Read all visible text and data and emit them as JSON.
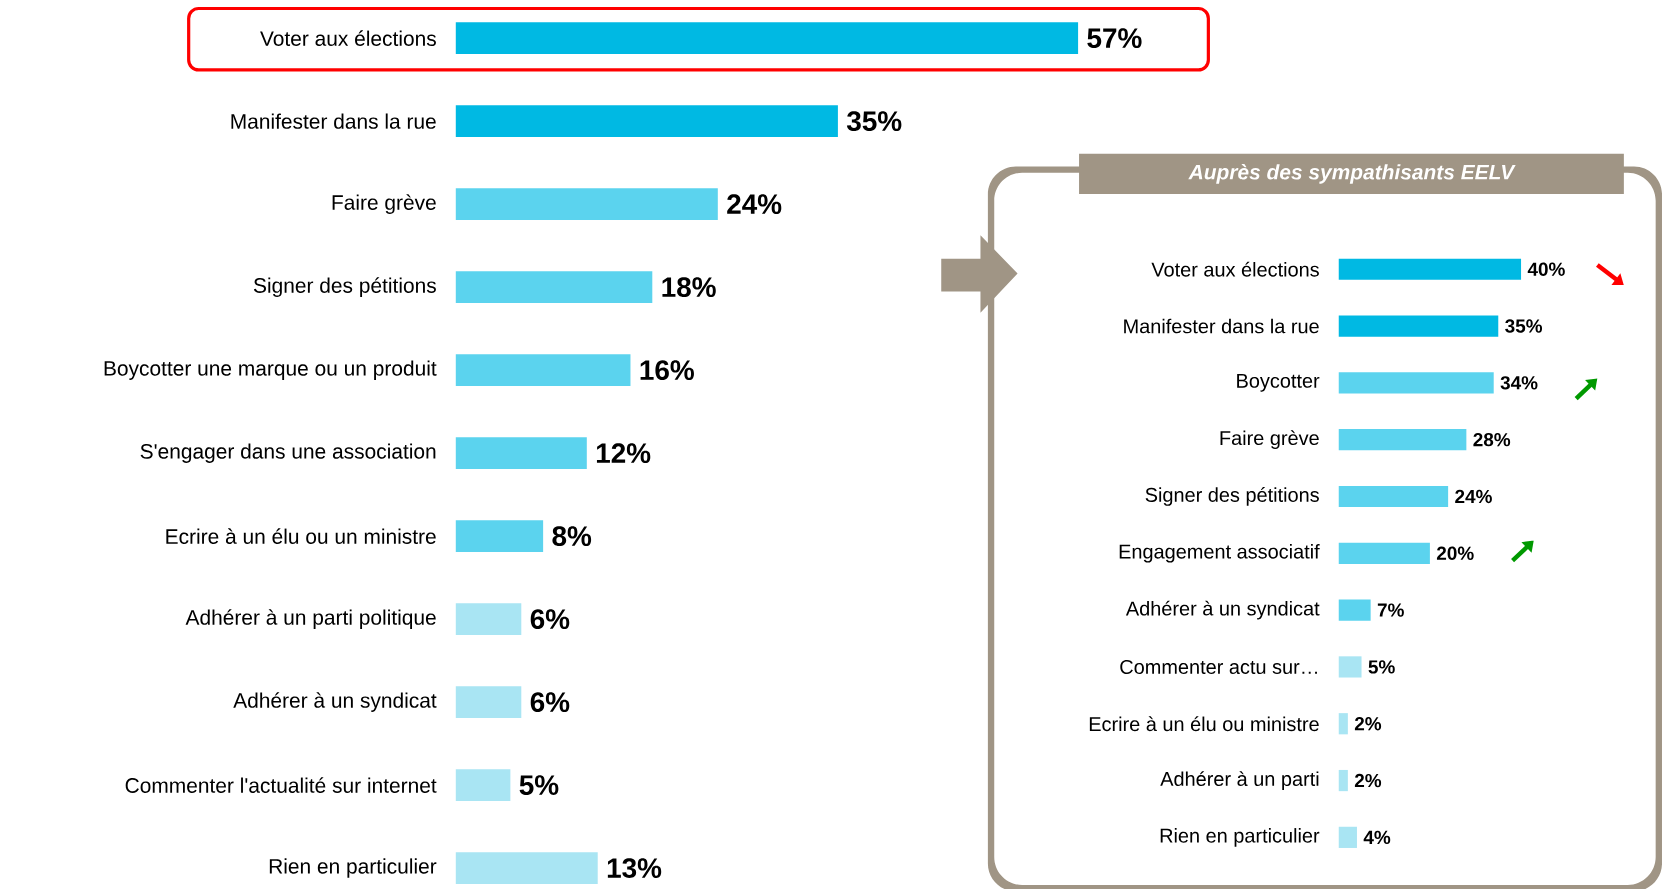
{
  "chart_data": [
    {
      "type": "bar",
      "orientation": "horizontal",
      "categories": [
        "Voter aux élections",
        "Manifester dans la rue",
        "Faire grève",
        "Signer des pétitions",
        "Boycotter une marque ou un produit",
        "S'engager dans une association",
        "Ecrire à un élu ou un ministre",
        "Adhérer à un parti politique",
        "Adhérer à un syndicat",
        "Commenter l'actualité sur internet",
        "Rien en particulier"
      ],
      "values": [
        57,
        35,
        24,
        18,
        16,
        12,
        8,
        6,
        6,
        5,
        13
      ],
      "colors": [
        "#00b9e3",
        "#00b9e3",
        "#5bd3ee",
        "#5bd3ee",
        "#5bd3ee",
        "#5bd3ee",
        "#5bd3ee",
        "#a9e5f3",
        "#a9e5f3",
        "#a9e5f3",
        "#a9e5f3"
      ],
      "value_labels": [
        "57%",
        "35%",
        "24%",
        "18%",
        "16%",
        "12%",
        "8%",
        "6%",
        "6%",
        "5%",
        "13%"
      ]
    },
    {
      "type": "bar",
      "orientation": "horizontal",
      "title": "Auprès des sympathisants EELV",
      "categories": [
        "Voter aux élections",
        "Manifester dans la rue",
        "Boycotter",
        "Faire grève",
        "Signer des pétitions",
        "Engagement associatif",
        "Adhérer à un syndicat",
        "Commenter actu sur…",
        "Ecrire à un élu ou ministre",
        "Adhérer à un parti",
        "Rien en particulier"
      ],
      "values": [
        40,
        35,
        34,
        28,
        24,
        20,
        7,
        5,
        2,
        2,
        4
      ],
      "colors": [
        "#00b9e3",
        "#00b9e3",
        "#5bd3ee",
        "#5bd3ee",
        "#5bd3ee",
        "#5bd3ee",
        "#5bd3ee",
        "#a9e5f3",
        "#a9e5f3",
        "#a9e5f3",
        "#a9e5f3"
      ],
      "value_labels": [
        "40%",
        "35%",
        "34%",
        "28%",
        "24%",
        "20%",
        "7%",
        "5%",
        "2%",
        "2%",
        "4%"
      ]
    }
  ]
}
